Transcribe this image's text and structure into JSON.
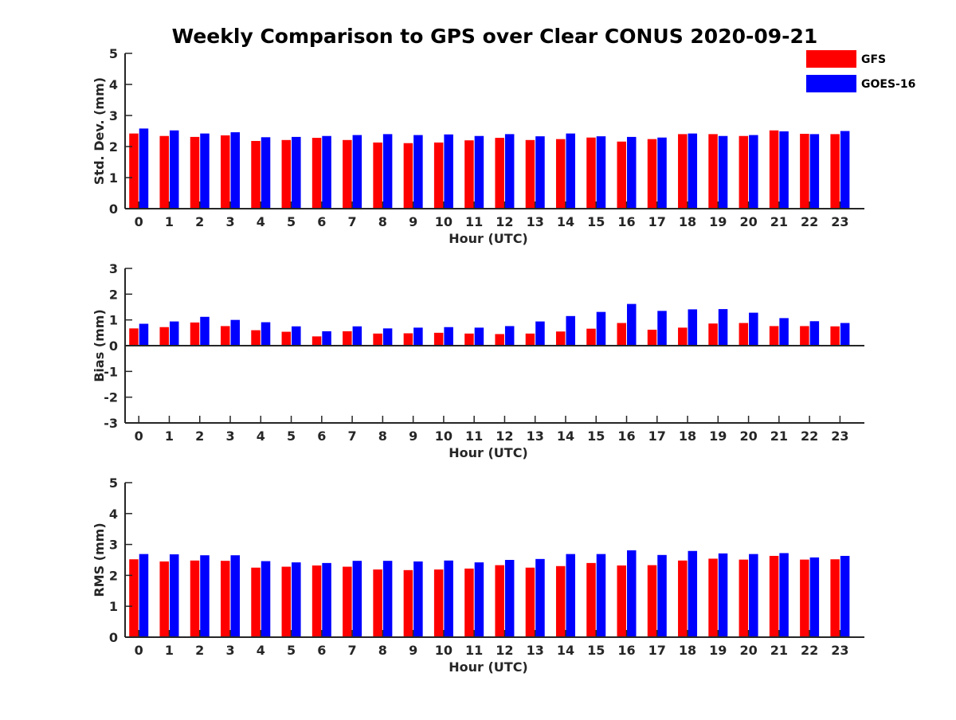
{
  "title": "Weekly Comparison to GPS over Clear CONUS 2020-09-21",
  "colors": {
    "GFS": "#ff0000",
    "GOES-16": "#0000ff",
    "axis": "#262626"
  },
  "chart_data": [
    {
      "type": "bar",
      "xlabel": "Hour (UTC)",
      "ylabel": "Std. Dev. (mm)",
      "ylim": [
        0,
        5
      ],
      "yticks": [
        0,
        1,
        2,
        3,
        4,
        5
      ],
      "categories": [
        "0",
        "1",
        "2",
        "3",
        "4",
        "5",
        "6",
        "7",
        "8",
        "9",
        "10",
        "11",
        "12",
        "13",
        "14",
        "15",
        "16",
        "17",
        "18",
        "19",
        "20",
        "21",
        "22",
        "23"
      ],
      "legend": "top-right",
      "series": [
        {
          "name": "GFS",
          "color": "#ff0000",
          "values": [
            2.42,
            2.34,
            2.31,
            2.36,
            2.18,
            2.21,
            2.28,
            2.21,
            2.13,
            2.11,
            2.13,
            2.2,
            2.28,
            2.21,
            2.24,
            2.29,
            2.16,
            2.24,
            2.4,
            2.4,
            2.34,
            2.52,
            2.41,
            2.4
          ]
        },
        {
          "name": "GOES-16",
          "color": "#0000ff",
          "values": [
            2.58,
            2.52,
            2.42,
            2.46,
            2.3,
            2.31,
            2.34,
            2.37,
            2.4,
            2.37,
            2.39,
            2.34,
            2.4,
            2.33,
            2.42,
            2.33,
            2.31,
            2.29,
            2.42,
            2.34,
            2.37,
            2.49,
            2.4,
            2.5
          ]
        }
      ]
    },
    {
      "type": "bar",
      "xlabel": "Hour (UTC)",
      "ylabel": "Bias (mm)",
      "ylim": [
        -3,
        3
      ],
      "yticks": [
        -3,
        -2,
        -1,
        0,
        1,
        2,
        3
      ],
      "categories": [
        "0",
        "1",
        "2",
        "3",
        "4",
        "5",
        "6",
        "7",
        "8",
        "9",
        "10",
        "11",
        "12",
        "13",
        "14",
        "15",
        "16",
        "17",
        "18",
        "19",
        "20",
        "21",
        "22",
        "23"
      ],
      "series": [
        {
          "name": "GFS",
          "color": "#ff0000",
          "values": [
            0.67,
            0.72,
            0.9,
            0.76,
            0.6,
            0.54,
            0.36,
            0.56,
            0.47,
            0.48,
            0.5,
            0.47,
            0.45,
            0.47,
            0.55,
            0.66,
            0.88,
            0.62,
            0.7,
            0.86,
            0.88,
            0.76,
            0.76,
            0.75
          ]
        },
        {
          "name": "GOES-16",
          "color": "#0000ff",
          "values": [
            0.85,
            0.94,
            1.12,
            1.0,
            0.91,
            0.75,
            0.56,
            0.75,
            0.67,
            0.7,
            0.72,
            0.7,
            0.76,
            0.94,
            1.15,
            1.31,
            1.62,
            1.35,
            1.41,
            1.42,
            1.28,
            1.07,
            0.95,
            0.88
          ]
        }
      ]
    },
    {
      "type": "bar",
      "xlabel": "Hour (UTC)",
      "ylabel": "RMS (mm)",
      "ylim": [
        0,
        5
      ],
      "yticks": [
        0,
        1,
        2,
        3,
        4,
        5
      ],
      "categories": [
        "0",
        "1",
        "2",
        "3",
        "4",
        "5",
        "6",
        "7",
        "8",
        "9",
        "10",
        "11",
        "12",
        "13",
        "14",
        "15",
        "16",
        "17",
        "18",
        "19",
        "20",
        "21",
        "22",
        "23"
      ],
      "series": [
        {
          "name": "GFS",
          "color": "#ff0000",
          "values": [
            2.52,
            2.45,
            2.48,
            2.47,
            2.25,
            2.28,
            2.32,
            2.28,
            2.19,
            2.17,
            2.19,
            2.22,
            2.33,
            2.25,
            2.3,
            2.4,
            2.32,
            2.33,
            2.48,
            2.54,
            2.51,
            2.63,
            2.51,
            2.52
          ]
        },
        {
          "name": "GOES-16",
          "color": "#0000ff",
          "values": [
            2.69,
            2.68,
            2.65,
            2.65,
            2.46,
            2.42,
            2.4,
            2.47,
            2.47,
            2.45,
            2.48,
            2.42,
            2.5,
            2.53,
            2.69,
            2.69,
            2.81,
            2.66,
            2.79,
            2.71,
            2.69,
            2.72,
            2.58,
            2.63
          ]
        }
      ]
    }
  ]
}
